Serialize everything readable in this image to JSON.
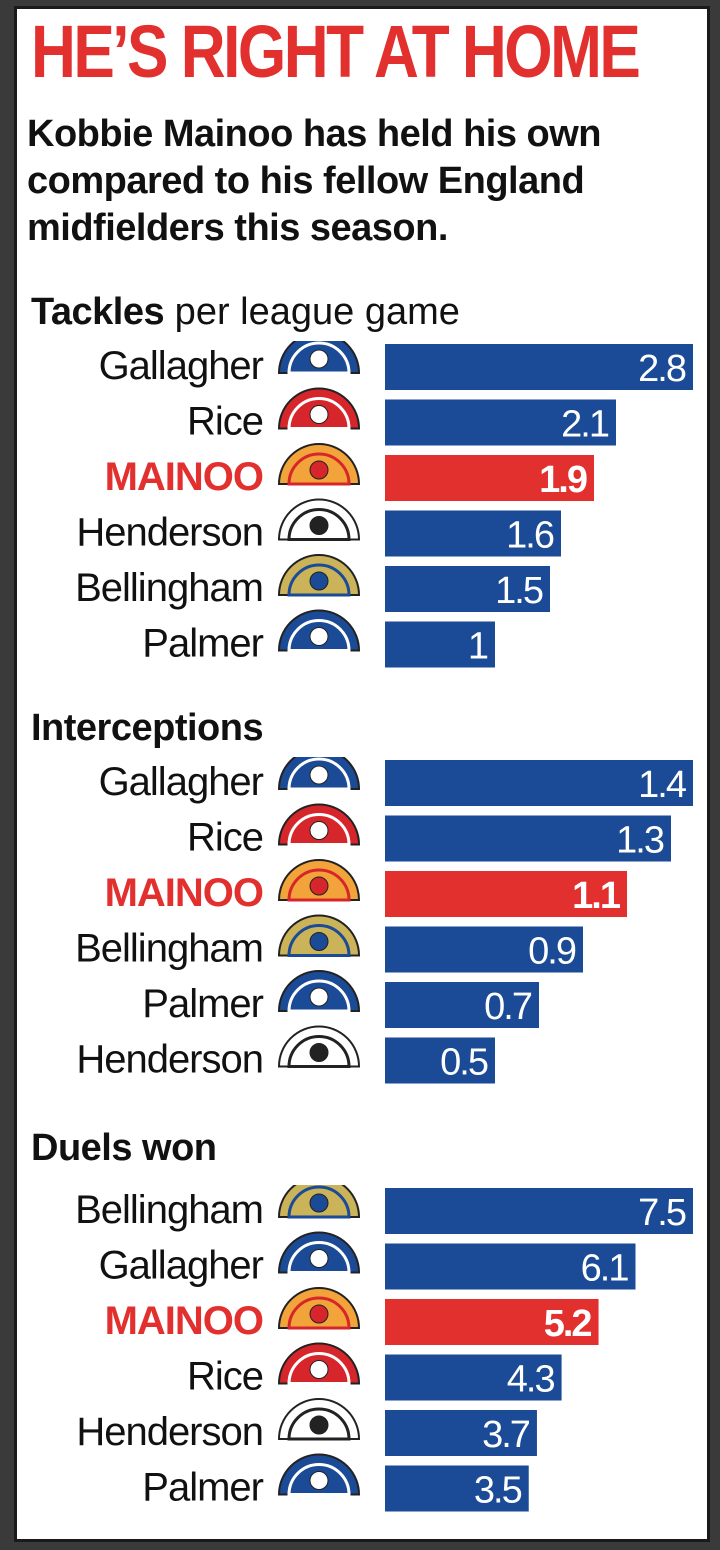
{
  "headline": "HE’S RIGHT AT HOME",
  "subhead": "Kobbie Mainoo has held his own compared to his fellow England midfielders this season.",
  "colors": {
    "bar": "#1b4a96",
    "highlight": "#e2302f",
    "headline": "#e2302f",
    "text": "#111111"
  },
  "chart_data": [
    {
      "type": "bar",
      "title_bold": "Tackles",
      "title_rest": " per league game",
      "orientation": "horizontal",
      "bars": [
        {
          "name": "Gallagher",
          "club_icon": "chelsea-crest-icon",
          "value": 2.8,
          "label": "2.8",
          "highlight": false
        },
        {
          "name": "Rice",
          "club_icon": "arsenal-crest-icon",
          "value": 2.1,
          "label": "2.1",
          "highlight": false
        },
        {
          "name": "MAINOO",
          "club_icon": "man-utd-crest-icon",
          "value": 1.9,
          "label": "1.9",
          "highlight": true
        },
        {
          "name": "Henderson",
          "club_icon": "ajax-crest-icon",
          "value": 1.6,
          "label": "1.6",
          "highlight": false
        },
        {
          "name": "Bellingham",
          "club_icon": "real-madrid-crest-icon",
          "value": 1.5,
          "label": "1.5",
          "highlight": false
        },
        {
          "name": "Palmer",
          "club_icon": "chelsea-crest-icon",
          "value": 1,
          "label": "1",
          "highlight": false
        }
      ]
    },
    {
      "type": "bar",
      "title_bold": "Interceptions",
      "title_rest": "",
      "orientation": "horizontal",
      "bars": [
        {
          "name": "Gallagher",
          "club_icon": "chelsea-crest-icon",
          "value": 1.4,
          "label": "1.4",
          "highlight": false
        },
        {
          "name": "Rice",
          "club_icon": "arsenal-crest-icon",
          "value": 1.3,
          "label": "1.3",
          "highlight": false
        },
        {
          "name": "MAINOO",
          "club_icon": "man-utd-crest-icon",
          "value": 1.1,
          "label": "1.1",
          "highlight": true
        },
        {
          "name": "Bellingham",
          "club_icon": "real-madrid-crest-icon",
          "value": 0.9,
          "label": "0.9",
          "highlight": false
        },
        {
          "name": "Palmer",
          "club_icon": "chelsea-crest-icon",
          "value": 0.7,
          "label": "0.7",
          "highlight": false
        },
        {
          "name": "Henderson",
          "club_icon": "ajax-crest-icon",
          "value": 0.5,
          "label": "0.5",
          "highlight": false
        }
      ]
    },
    {
      "type": "bar",
      "title_bold": "Duels won",
      "title_rest": "",
      "orientation": "horizontal",
      "bars": [
        {
          "name": "Bellingham",
          "club_icon": "real-madrid-crest-icon",
          "value": 7.5,
          "label": "7.5",
          "highlight": false
        },
        {
          "name": "Gallagher",
          "club_icon": "chelsea-crest-icon",
          "value": 6.1,
          "label": "6.1",
          "highlight": false
        },
        {
          "name": "MAINOO",
          "club_icon": "man-utd-crest-icon",
          "value": 5.2,
          "label": "5.2",
          "highlight": true
        },
        {
          "name": "Rice",
          "club_icon": "arsenal-crest-icon",
          "value": 4.3,
          "label": "4.3",
          "highlight": false
        },
        {
          "name": "Henderson",
          "club_icon": "ajax-crest-icon",
          "value": 3.7,
          "label": "3.7",
          "highlight": false
        },
        {
          "name": "Palmer",
          "club_icon": "chelsea-crest-icon",
          "value": 3.5,
          "label": "3.5",
          "highlight": false
        }
      ]
    }
  ]
}
